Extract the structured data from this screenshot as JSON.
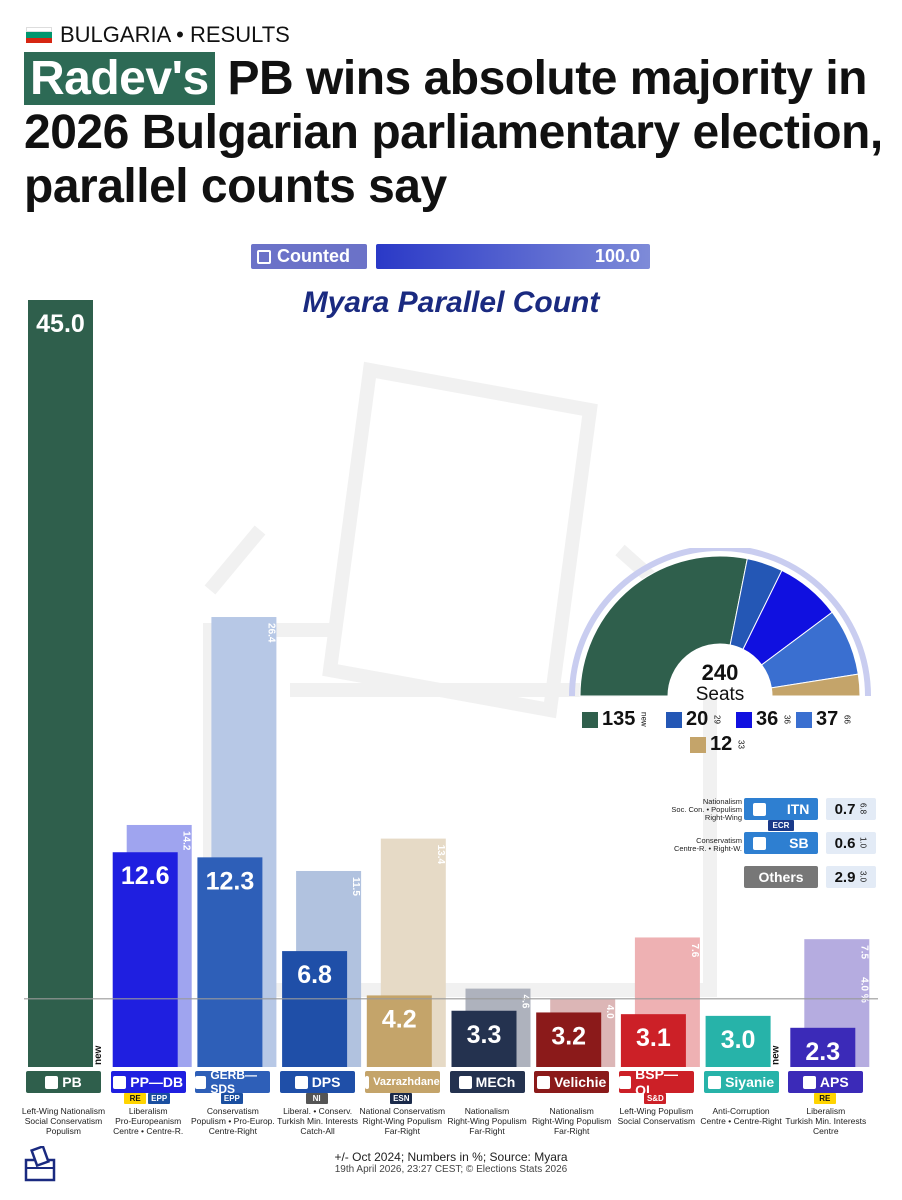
{
  "header": {
    "country": "BULGARIA",
    "section": "RESULTS",
    "tag_text": "BULGARIA • RESULTS",
    "headline_highlight": "Radev's",
    "headline_rest": " PB wins absolute majority in 2026 Bulgarian parliamentary election, parallel counts say"
  },
  "counted": {
    "label": "Counted",
    "value": "100.0"
  },
  "subtitle": "Myara Parallel Count",
  "chart_data": {
    "type": "bar",
    "categories": [
      "PB",
      "PP—DB",
      "GERB—SDS",
      "DPS",
      "Vazrazhdane",
      "MECh",
      "Velichie",
      "BSP—OL",
      "Siyanie",
      "APS"
    ],
    "series": [
      {
        "name": "Myara Parallel Count",
        "values": [
          45.0,
          12.6,
          12.3,
          6.8,
          4.2,
          3.3,
          3.2,
          3.1,
          3.0,
          2.3
        ]
      },
      {
        "name": "Oct 2024",
        "values": [
          null,
          14.2,
          26.4,
          11.5,
          13.4,
          4.6,
          4.0,
          7.6,
          null,
          7.5
        ]
      }
    ],
    "value_labels": [
      "45.0",
      "12.6",
      "12.3",
      "6.8",
      "4.2",
      "3.3",
      "3.2",
      "3.1",
      "3.0",
      "2.3"
    ],
    "prev_labels": [
      "new",
      "14.2",
      "26.4",
      "11.5",
      "13.4",
      "4.6",
      "4.0",
      "7.6",
      "new",
      "7.5"
    ],
    "aps_extra_label": "4.0 %",
    "threshold": 4.0,
    "ylim": [
      0,
      45
    ],
    "colors": [
      "#2f5f4c",
      "#1f1fe0",
      "#2e5fb8",
      "#1f4fa8",
      "#c4a46a",
      "#24324f",
      "#8b1a1a",
      "#cc2027",
      "#27b3a9",
      "#3b2ab8"
    ],
    "prev_colors": [
      "",
      "#9fa4ef",
      "#b7c8e6",
      "#b1c2df",
      "#e6dac6",
      "#aeb2bd",
      "#dcb6b6",
      "#eeb1b3",
      "",
      "#b5ace0"
    ]
  },
  "parties": [
    {
      "name": "PB",
      "icon": "pb-logo-icon",
      "tags": [],
      "desc": [
        "Left-Wing Nationalism",
        "Social Conservatism",
        "Populism"
      ]
    },
    {
      "name": "PP—DB",
      "icon": "ppdb-logo-icon",
      "tags": [
        {
          "t": "RE",
          "bg": "#ffd400",
          "fg": "#111"
        },
        {
          "t": "EPP",
          "bg": "#1b4fa0",
          "fg": "#fff"
        }
      ],
      "desc": [
        "Liberalism",
        "Pro-Europeanism",
        "Centre • Centre-R."
      ]
    },
    {
      "name": "GERB—SDS",
      "icon": "gerb-logo-icon",
      "tags": [
        {
          "t": "EPP",
          "bg": "#1b4fa0",
          "fg": "#fff"
        }
      ],
      "desc": [
        "Conservatism",
        "Populism • Pro-Europ.",
        "Centre-Right"
      ]
    },
    {
      "name": "DPS",
      "icon": "dps-logo-icon",
      "tags": [
        {
          "t": "NI",
          "bg": "#555",
          "fg": "#fff"
        }
      ],
      "desc": [
        "Liberal. • Conserv.",
        "Turkish Min. Interests",
        "Catch-All"
      ]
    },
    {
      "name": "Vazrazhdane",
      "icon": "vazrazhdane-logo-icon",
      "tags": [
        {
          "t": "ESN",
          "bg": "#1a2a4a",
          "fg": "#fff"
        }
      ],
      "desc": [
        "National Conservatism",
        "Right-Wing Populism",
        "Far-Right"
      ]
    },
    {
      "name": "MECh",
      "icon": "mech-logo-icon",
      "tags": [],
      "desc": [
        "Nationalism",
        "Right-Wing Populism",
        "Far-Right"
      ]
    },
    {
      "name": "Velichie",
      "icon": "velichie-logo-icon",
      "tags": [],
      "desc": [
        "Nationalism",
        "Right-Wing Populism",
        "Far-Right"
      ]
    },
    {
      "name": "BSP—OL",
      "icon": "bsp-logo-icon",
      "tags": [
        {
          "t": "S&D",
          "bg": "#cc2027",
          "fg": "#fff"
        }
      ],
      "desc": [
        "Left-Wing Populism",
        "Social Conservatism"
      ]
    },
    {
      "name": "Siyanie",
      "icon": "siyanie-logo-icon",
      "tags": [],
      "desc": [
        "Anti-Corruption",
        "Centre • Centre-Right"
      ]
    },
    {
      "name": "APS",
      "icon": "aps-logo-icon",
      "tags": [
        {
          "t": "RE",
          "bg": "#ffd400",
          "fg": "#111"
        }
      ],
      "desc": [
        "Liberalism",
        "Turkish Min. Interests",
        "Centre"
      ]
    }
  ],
  "seats": {
    "total": "240",
    "label": "Seats",
    "items": [
      {
        "party": "PB",
        "seats": 135,
        "prev": "new",
        "color": "#2f5f4c"
      },
      {
        "party": "PP—DB",
        "seats": 20,
        "prev": "29",
        "color": "#2457b5"
      },
      {
        "party": "DPS",
        "seats": 36,
        "prev": "36",
        "color": "#1010e0"
      },
      {
        "party": "GERB—SDS",
        "seats": 37,
        "prev": "66",
        "color": "#3a6fd0"
      },
      {
        "party": "Vazrazhdane",
        "seats": 12,
        "prev": "33",
        "color": "#c4a46a"
      }
    ]
  },
  "minor": [
    {
      "name": "ITN",
      "desc": [
        "Nationalism",
        "Soc. Con. • Populism",
        "Right-Wing"
      ],
      "tag": "ECR",
      "value": "0.7",
      "prev": "6.8",
      "color": "#2e7fd1"
    },
    {
      "name": "SB",
      "desc": [
        "Conservatism",
        "Centre-R. • Right-W."
      ],
      "tag": "",
      "value": "0.6",
      "prev": "1.0",
      "color": "#2e7fd1"
    },
    {
      "name": "Others",
      "desc": [],
      "tag": "",
      "value": "2.9",
      "prev": "3.0",
      "color": "#777777"
    }
  ],
  "footer": {
    "note": "+/- Oct 2024; Numbers in %; Source: Myara",
    "credit": "19th April 2026, 23:27 CEST; © Elections Stats 2026"
  }
}
